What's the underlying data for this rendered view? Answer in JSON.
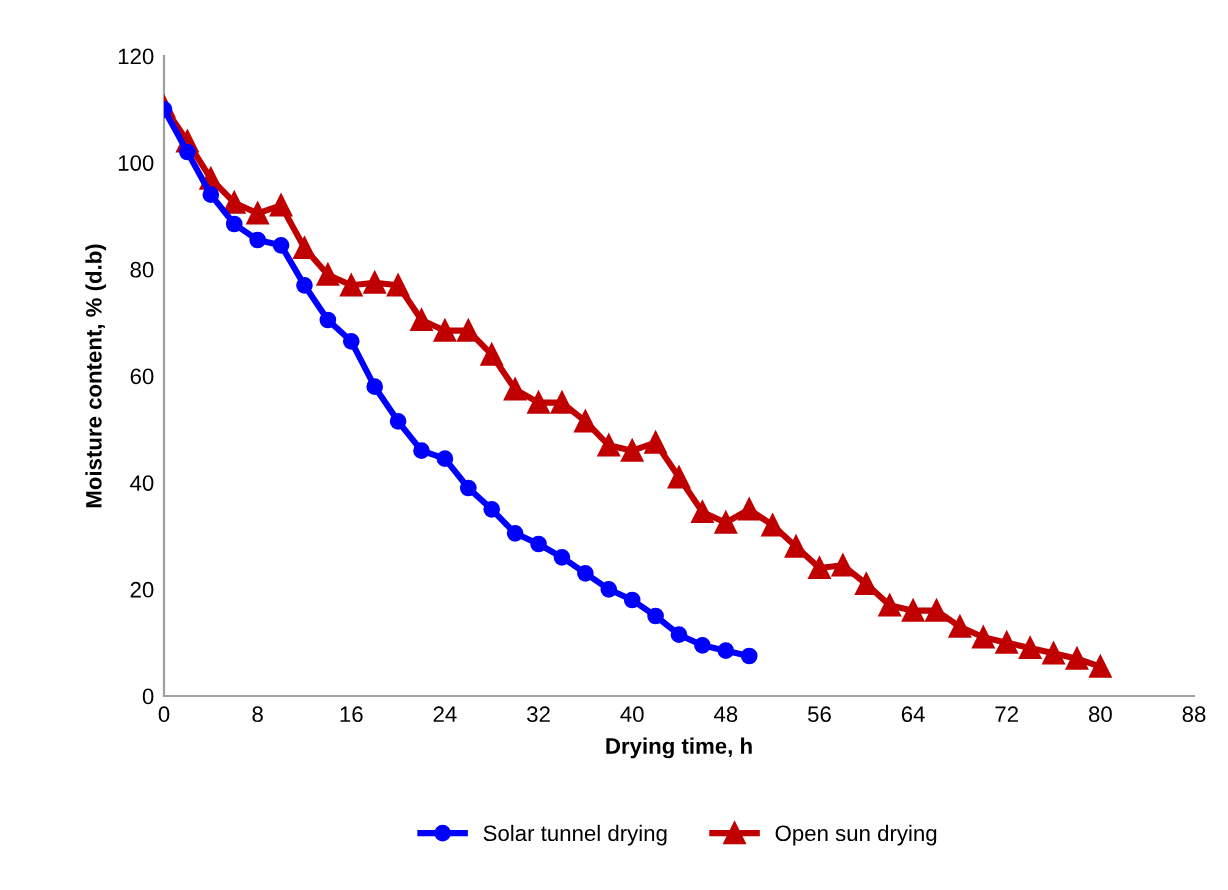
{
  "chart_data": {
    "type": "line",
    "xlabel": "Drying time, h",
    "ylabel": "Moisture content, % (d.b)",
    "xlim": [
      0,
      88
    ],
    "xticks": [
      0,
      8,
      16,
      24,
      32,
      40,
      48,
      56,
      64,
      72,
      80,
      88
    ],
    "ylim": [
      0,
      120
    ],
    "yticks": [
      0,
      20,
      40,
      60,
      80,
      100,
      120
    ],
    "grid": false,
    "legend": "bottom",
    "series": [
      {
        "name": "Solar tunnel drying",
        "color": "#0000ff",
        "marker": "circle",
        "x": [
          0,
          2,
          4,
          6,
          8,
          10,
          12,
          14,
          16,
          18,
          20,
          22,
          24,
          26,
          28,
          30,
          32,
          34,
          36,
          38,
          40,
          42,
          44,
          46,
          48,
          50
        ],
        "values": [
          110,
          102,
          94,
          88.5,
          85.5,
          84.5,
          77,
          70.5,
          66.5,
          58,
          51.5,
          46,
          44.5,
          39,
          35,
          30.5,
          28.5,
          26,
          23,
          20,
          18,
          15,
          11.5,
          9.5,
          8.5,
          7.5
        ]
      },
      {
        "name": "Open sun drying",
        "color": "#c00000",
        "marker": "triangle",
        "x": [
          0,
          2,
          4,
          6,
          8,
          10,
          12,
          14,
          16,
          18,
          20,
          22,
          24,
          26,
          28,
          30,
          32,
          34,
          36,
          38,
          40,
          42,
          44,
          46,
          48,
          50,
          52,
          54,
          56,
          58,
          60,
          62,
          64,
          66,
          68,
          70,
          72,
          74,
          76,
          78,
          80
        ],
        "values": [
          110.5,
          104,
          97,
          92.5,
          90.5,
          92,
          84,
          79,
          77,
          77.5,
          77,
          70.5,
          68.5,
          68.5,
          64,
          57.5,
          55,
          55,
          51.5,
          47,
          46,
          47.5,
          41,
          34.5,
          32.5,
          35,
          32,
          28,
          24,
          24.5,
          21,
          17,
          16,
          16,
          13,
          11,
          10,
          9,
          8,
          7,
          5.5
        ]
      }
    ]
  }
}
